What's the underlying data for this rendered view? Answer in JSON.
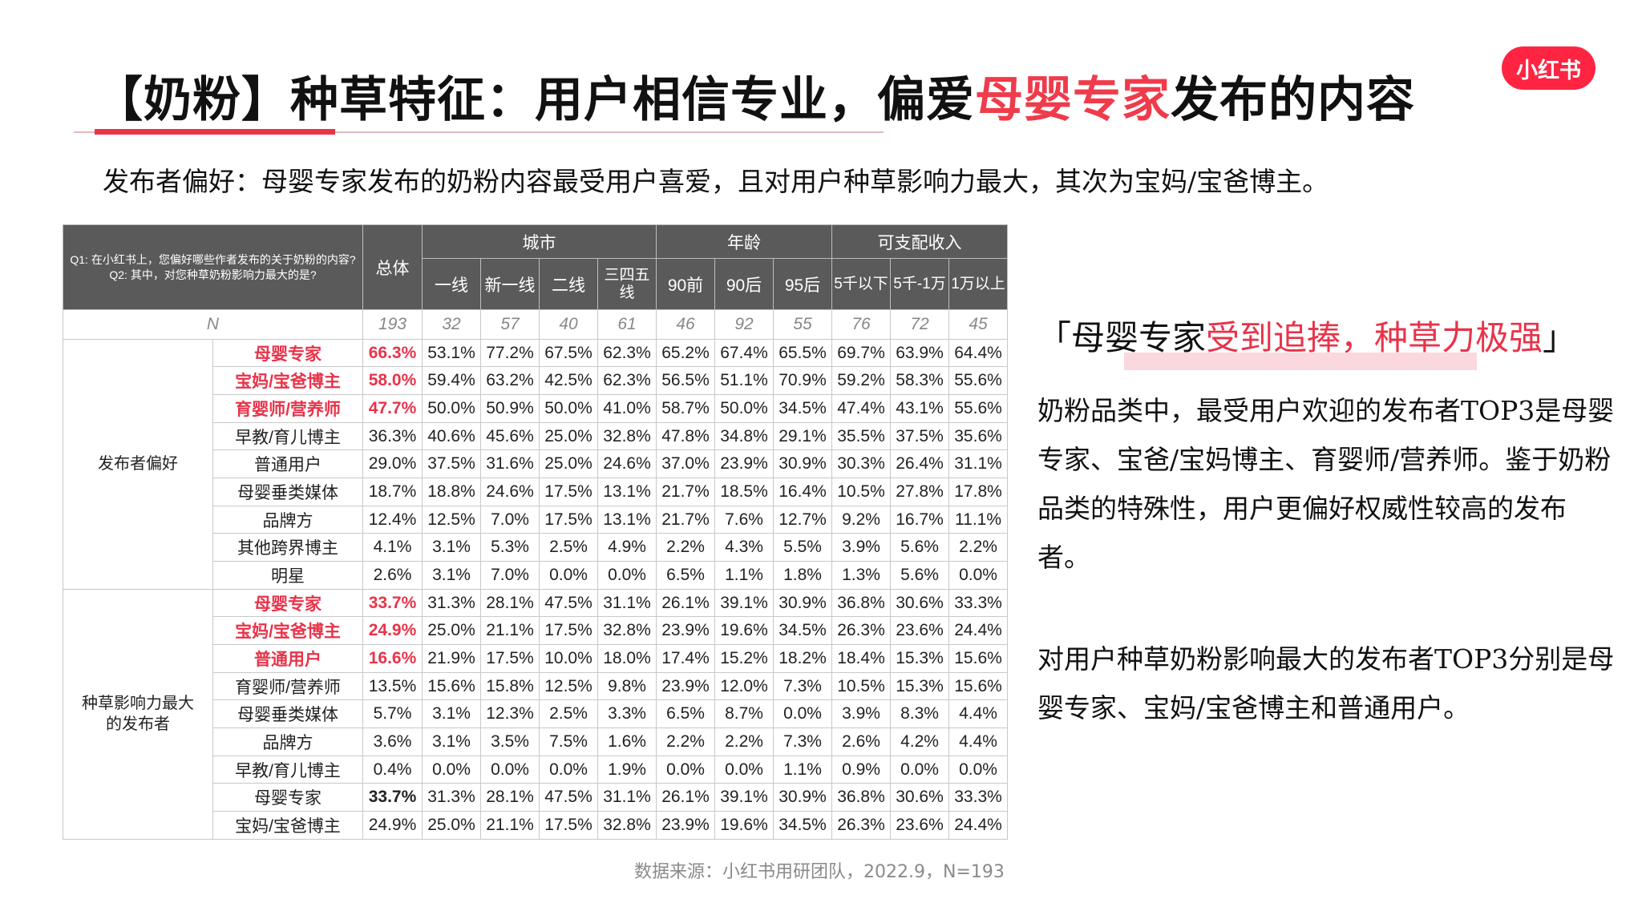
{
  "title": {
    "part1": "【奶粉】种草特征：用户相信专业，偏爱",
    "highlight": "母婴专家",
    "part2": "发布的内容"
  },
  "logo": "小红书",
  "subtitle": "发布者偏好：母婴专家发布的奶粉内容最受用户喜爱，且对用户种草影响力最大，其次为宝妈/宝爸博主。",
  "table": {
    "question": [
      "Q1: 在小红书上，您偏好哪些作者发布的关于奶粉的内容?",
      "Q2: 其中，对您种草奶粉影响力最大的是?"
    ],
    "total_label": "总体",
    "groups": [
      "城市",
      "年龄",
      "可支配收入"
    ],
    "columns": [
      "一线",
      "新一线",
      "二线",
      "三四五线",
      "90前",
      "90后",
      "95后",
      "5千以下",
      "5千-1万",
      "1万以上"
    ],
    "n_label": "N",
    "n_values": [
      "193",
      "32",
      "57",
      "40",
      "61",
      "46",
      "92",
      "55",
      "76",
      "72",
      "45"
    ],
    "sections": [
      {
        "name": "发布者偏好",
        "rows": [
          {
            "label": "母婴专家",
            "hl": true,
            "values": [
              "66.3%",
              "53.1%",
              "77.2%",
              "67.5%",
              "62.3%",
              "65.2%",
              "67.4%",
              "65.5%",
              "69.7%",
              "63.9%",
              "64.4%"
            ]
          },
          {
            "label": "宝妈/宝爸博主",
            "hl": true,
            "values": [
              "58.0%",
              "59.4%",
              "63.2%",
              "42.5%",
              "62.3%",
              "56.5%",
              "51.1%",
              "70.9%",
              "59.2%",
              "58.3%",
              "55.6%"
            ]
          },
          {
            "label": "育婴师/营养师",
            "hl": true,
            "values": [
              "47.7%",
              "50.0%",
              "50.9%",
              "50.0%",
              "41.0%",
              "58.7%",
              "50.0%",
              "34.5%",
              "47.4%",
              "43.1%",
              "55.6%"
            ]
          },
          {
            "label": "早教/育儿博主",
            "hl": false,
            "values": [
              "36.3%",
              "40.6%",
              "45.6%",
              "25.0%",
              "32.8%",
              "47.8%",
              "34.8%",
              "29.1%",
              "35.5%",
              "37.5%",
              "35.6%"
            ]
          },
          {
            "label": "普通用户",
            "hl": false,
            "values": [
              "29.0%",
              "37.5%",
              "31.6%",
              "25.0%",
              "24.6%",
              "37.0%",
              "23.9%",
              "30.9%",
              "30.3%",
              "26.4%",
              "31.1%"
            ]
          },
          {
            "label": "母婴垂类媒体",
            "hl": false,
            "values": [
              "18.7%",
              "18.8%",
              "24.6%",
              "17.5%",
              "13.1%",
              "21.7%",
              "18.5%",
              "16.4%",
              "10.5%",
              "27.8%",
              "17.8%"
            ]
          },
          {
            "label": "品牌方",
            "hl": false,
            "values": [
              "12.4%",
              "12.5%",
              "7.0%",
              "17.5%",
              "13.1%",
              "21.7%",
              "7.6%",
              "12.7%",
              "9.2%",
              "16.7%",
              "11.1%"
            ]
          },
          {
            "label": "其他跨界博主",
            "hl": false,
            "values": [
              "4.1%",
              "3.1%",
              "5.3%",
              "2.5%",
              "4.9%",
              "2.2%",
              "4.3%",
              "5.5%",
              "3.9%",
              "5.6%",
              "2.2%"
            ]
          },
          {
            "label": "明星",
            "hl": false,
            "values": [
              "2.6%",
              "3.1%",
              "7.0%",
              "0.0%",
              "0.0%",
              "6.5%",
              "1.1%",
              "1.8%",
              "1.3%",
              "5.6%",
              "0.0%"
            ]
          }
        ]
      },
      {
        "name": "种草影响力最大的发布者",
        "rows": [
          {
            "label": "母婴专家",
            "hl": true,
            "values": [
              "33.7%",
              "31.3%",
              "28.1%",
              "47.5%",
              "31.1%",
              "26.1%",
              "39.1%",
              "30.9%",
              "36.8%",
              "30.6%",
              "33.3%"
            ]
          },
          {
            "label": "宝妈/宝爸博主",
            "hl": true,
            "values": [
              "24.9%",
              "25.0%",
              "21.1%",
              "17.5%",
              "32.8%",
              "23.9%",
              "19.6%",
              "34.5%",
              "26.3%",
              "23.6%",
              "24.4%"
            ]
          },
          {
            "label": "普通用户",
            "hl": true,
            "values": [
              "16.6%",
              "21.9%",
              "17.5%",
              "10.0%",
              "18.0%",
              "17.4%",
              "15.2%",
              "18.2%",
              "18.4%",
              "15.3%",
              "15.6%"
            ]
          },
          {
            "label": "育婴师/营养师",
            "hl": false,
            "values": [
              "13.5%",
              "15.6%",
              "15.8%",
              "12.5%",
              "9.8%",
              "23.9%",
              "12.0%",
              "7.3%",
              "10.5%",
              "15.3%",
              "15.6%"
            ]
          },
          {
            "label": "母婴垂类媒体",
            "hl": false,
            "values": [
              "5.7%",
              "3.1%",
              "12.3%",
              "2.5%",
              "3.3%",
              "6.5%",
              "8.7%",
              "0.0%",
              "3.9%",
              "8.3%",
              "4.4%"
            ]
          },
          {
            "label": "品牌方",
            "hl": false,
            "values": [
              "3.6%",
              "3.1%",
              "3.5%",
              "7.5%",
              "1.6%",
              "2.2%",
              "2.2%",
              "7.3%",
              "2.6%",
              "4.2%",
              "4.4%"
            ]
          },
          {
            "label": "早教/育儿博主",
            "hl": false,
            "values": [
              "0.4%",
              "0.0%",
              "0.0%",
              "0.0%",
              "1.9%",
              "0.0%",
              "0.0%",
              "1.1%",
              "0.9%",
              "0.0%",
              "0.0%"
            ]
          },
          {
            "label": "母婴专家",
            "hl": false,
            "bold": true,
            "values": [
              "33.7%",
              "31.3%",
              "28.1%",
              "47.5%",
              "31.1%",
              "26.1%",
              "39.1%",
              "30.9%",
              "36.8%",
              "30.6%",
              "33.3%"
            ]
          },
          {
            "label": "宝妈/宝爸博主",
            "hl": false,
            "values": [
              "24.9%",
              "25.0%",
              "21.1%",
              "17.5%",
              "32.8%",
              "23.9%",
              "19.6%",
              "34.5%",
              "26.3%",
              "23.6%",
              "24.4%"
            ]
          }
        ]
      }
    ]
  },
  "quote": {
    "open": "「",
    "black": "母婴专家",
    "red": "受到追捧，种草力极强",
    "close": "」"
  },
  "paragraph1": "奶粉品类中，最受用户欢迎的发布者TOP3是母婴专家、宝爸/宝妈博主、育婴师/营养师。鉴于奶粉品类的特殊性，用户更偏好权威性较高的发布者。",
  "paragraph2": "对用户种草奶粉影响最大的发布者TOP3分别是母婴专家、宝妈/宝爸博主和普通用户。",
  "source": "数据来源：小红书用研团队，2022.9，N=193",
  "colors": {
    "accent": "#e8334a",
    "header_bg": "#5a5a5a",
    "brand": "#ff2442"
  }
}
